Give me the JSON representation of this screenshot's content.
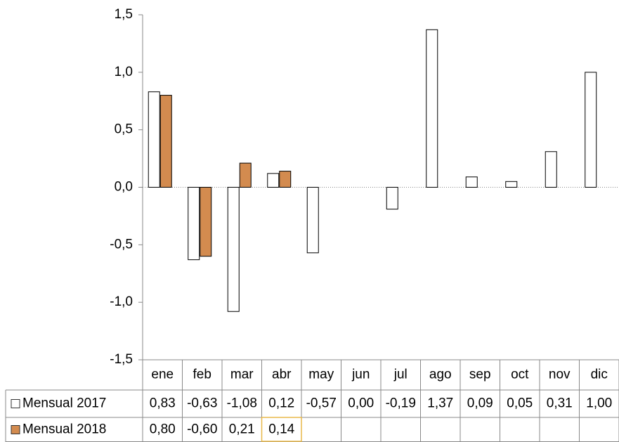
{
  "chart_data": {
    "type": "bar",
    "categories": [
      "ene",
      "feb",
      "mar",
      "abr",
      "may",
      "jun",
      "jul",
      "ago",
      "sep",
      "oct",
      "nov",
      "dic"
    ],
    "series": [
      {
        "name": "Mensual 2017",
        "color": "#ffffff",
        "values": [
          0.83,
          -0.63,
          -1.08,
          0.12,
          -0.57,
          0.0,
          -0.19,
          1.37,
          0.09,
          0.05,
          0.31,
          1.0
        ],
        "value_labels": [
          "0,83",
          "-0,63",
          "-1,08",
          "0,12",
          "-0,57",
          "0,00",
          "-0,19",
          "1,37",
          "0,09",
          "0,05",
          "0,31",
          "1,00"
        ]
      },
      {
        "name": "Mensual 2018",
        "color": "#d38b4f",
        "values": [
          0.8,
          -0.6,
          0.21,
          0.14,
          null,
          null,
          null,
          null,
          null,
          null,
          null,
          null
        ],
        "value_labels": [
          "0,80",
          "-0,60",
          "0,21",
          "0,14",
          null,
          null,
          null,
          null,
          null,
          null,
          null,
          null
        ]
      }
    ],
    "ylim": [
      -1.5,
      1.5
    ],
    "yticks": [
      {
        "value": -1.5,
        "label": "-1,5"
      },
      {
        "value": -1,
        "label": "-1,0"
      },
      {
        "value": -0.5,
        "label": "-0,5"
      },
      {
        "value": 0,
        "label": "0,0"
      },
      {
        "value": 0.5,
        "label": "0,5"
      },
      {
        "value": 1,
        "label": "1,0"
      },
      {
        "value": 1.5,
        "label": "1,5"
      }
    ]
  }
}
